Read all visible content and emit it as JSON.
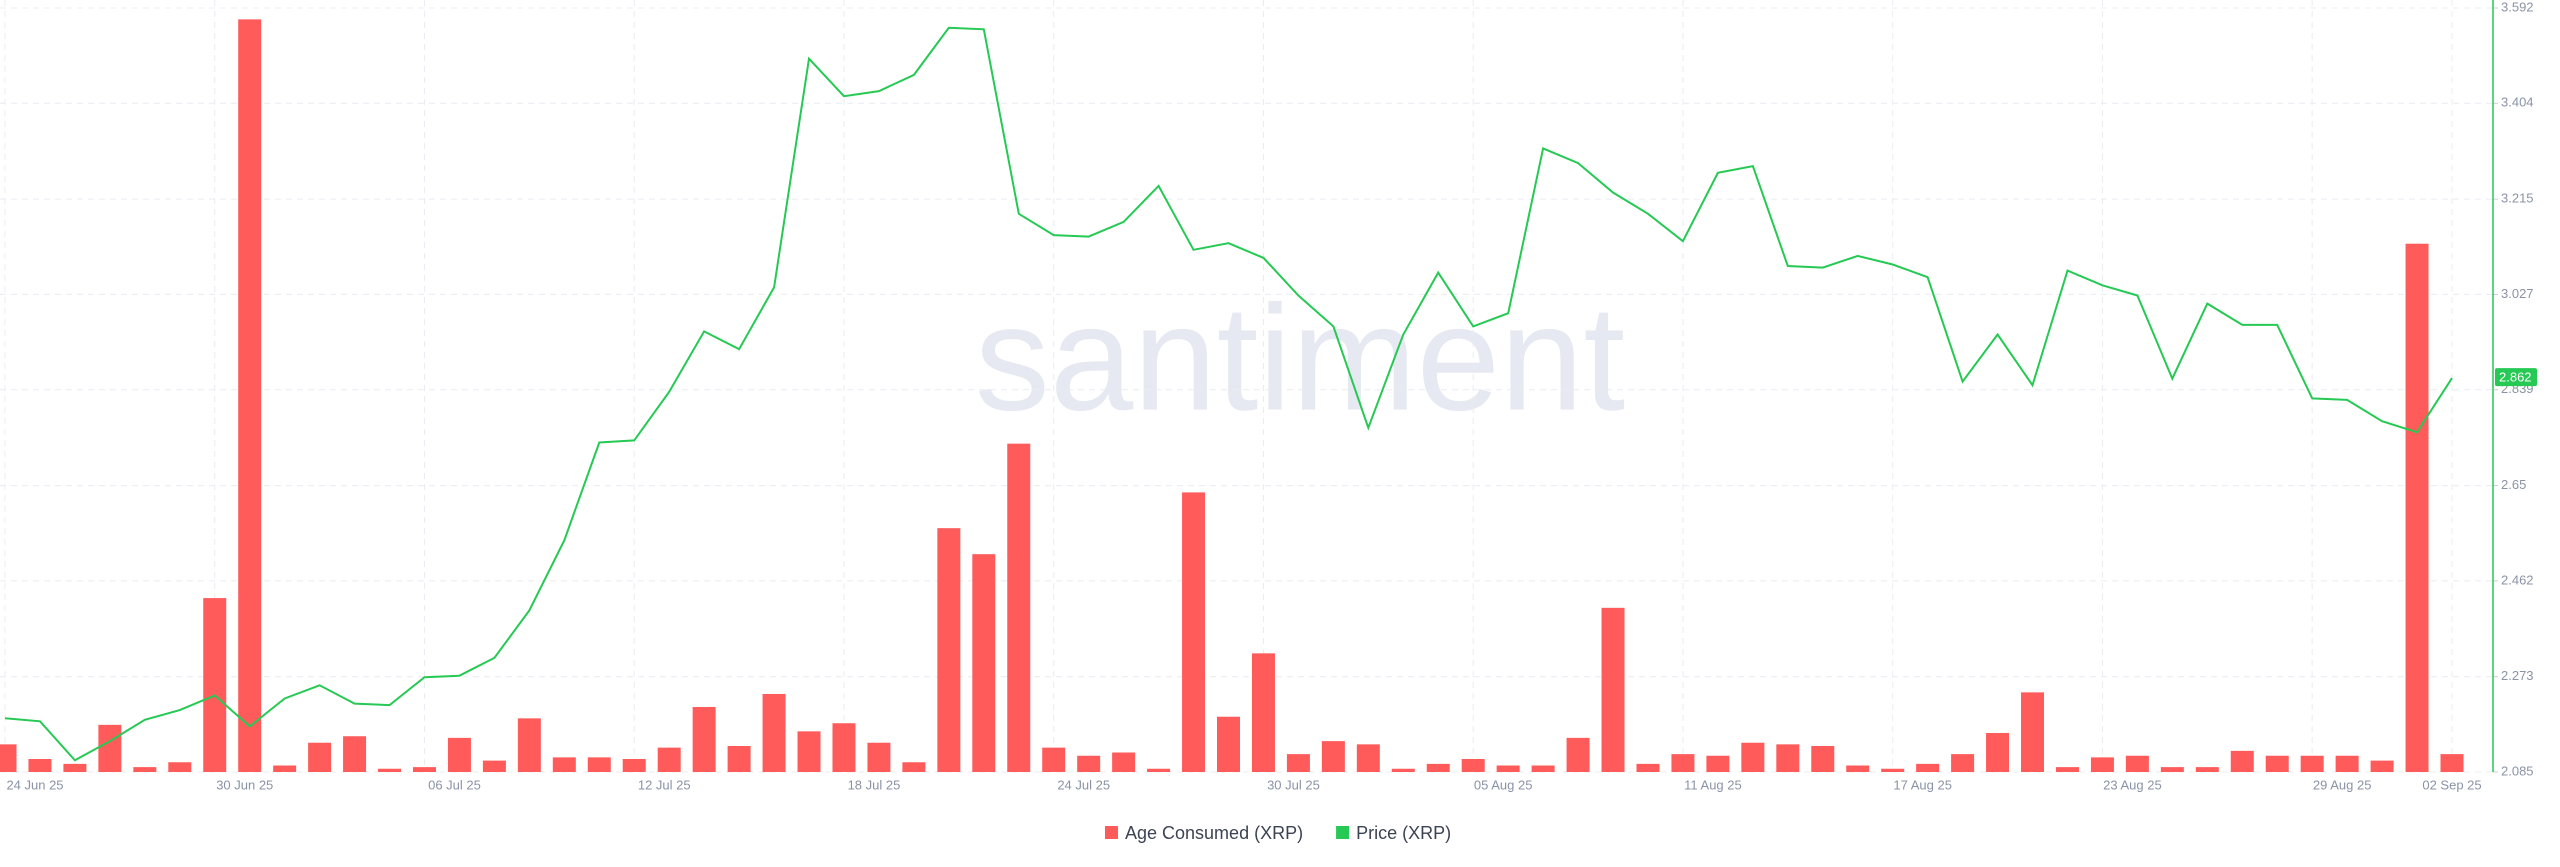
{
  "chart_data": {
    "type": "bar-line",
    "watermark": "santiment",
    "categories": [
      "24 Jun 25",
      null,
      null,
      null,
      null,
      null,
      "30 Jun 25",
      null,
      null,
      null,
      null,
      null,
      "06 Jul 25",
      null,
      null,
      null,
      null,
      null,
      "12 Jul 25",
      null,
      null,
      null,
      null,
      null,
      "18 Jul 25",
      null,
      null,
      null,
      null,
      null,
      "24 Jul 25",
      null,
      null,
      null,
      null,
      null,
      "30 Jul 25",
      null,
      null,
      null,
      null,
      null,
      "05 Aug 25",
      null,
      null,
      null,
      null,
      null,
      "11 Aug 25",
      null,
      null,
      null,
      null,
      null,
      "17 Aug 25",
      null,
      null,
      null,
      null,
      null,
      "23 Aug 25",
      null,
      null,
      null,
      null,
      null,
      "29 Aug 25",
      null,
      null,
      null,
      "02 Sep 25"
    ],
    "series": [
      {
        "name": "Age Consumed (XRP)",
        "color": "#ff5b5b",
        "type": "bar",
        "values": [
          17,
          8,
          5,
          29,
          3,
          6,
          107,
          463,
          4,
          18,
          22,
          2,
          3,
          21,
          7,
          33,
          9,
          9,
          8,
          15,
          40,
          16,
          48,
          25,
          30,
          18,
          6,
          150,
          134,
          202,
          15,
          10,
          12,
          2,
          172,
          34,
          73,
          11,
          19,
          17,
          2,
          5,
          8,
          4,
          4,
          21,
          101,
          5,
          11,
          10,
          18,
          17,
          16,
          4,
          2,
          5,
          11,
          24,
          49,
          3,
          9,
          10,
          3,
          3,
          13,
          10,
          10,
          10,
          7,
          325,
          11
        ]
      },
      {
        "name": "Price (XRP)",
        "color": "#26c953",
        "type": "line",
        "axis": "y2",
        "values": [
          2.191,
          2.185,
          2.108,
          2.146,
          2.188,
          2.207,
          2.236,
          2.175,
          2.23,
          2.256,
          2.22,
          2.217,
          2.272,
          2.275,
          2.31,
          2.404,
          2.542,
          2.735,
          2.739,
          2.835,
          2.954,
          2.919,
          3.041,
          3.492,
          3.418,
          3.428,
          3.46,
          3.553,
          3.55,
          3.186,
          3.144,
          3.141,
          3.17,
          3.241,
          3.115,
          3.128,
          3.099,
          3.025,
          2.964,
          2.764,
          2.948,
          3.07,
          2.964,
          2.99,
          3.315,
          3.286,
          3.228,
          3.186,
          3.132,
          3.267,
          3.28,
          3.083,
          3.08,
          3.103,
          3.086,
          3.061,
          2.855,
          2.948,
          2.848,
          3.074,
          3.045,
          3.025,
          2.861,
          3.009,
          2.967,
          2.967,
          2.822,
          2.819,
          2.777,
          2.755,
          2.862
        ]
      }
    ],
    "ylim": [
      0,
      470
    ],
    "y2lim": [
      2.085,
      3.592
    ],
    "y2ticks": [
      2.085,
      2.273,
      2.462,
      2.65,
      2.839,
      3.027,
      3.215,
      3.404,
      3.592
    ],
    "grid": true
  }
}
